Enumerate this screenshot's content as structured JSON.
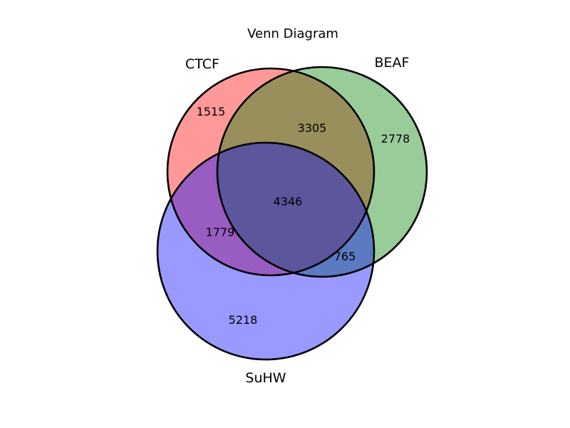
{
  "title": "Venn Diagram",
  "sets": {
    "a": {
      "label": "CTCF",
      "color": "#ff0000"
    },
    "b": {
      "label": "BEAF",
      "color": "#008000"
    },
    "c": {
      "label": "SuHW",
      "color": "#0000ff"
    }
  },
  "regions": {
    "a_only": "1515",
    "b_only": "2778",
    "ab": "3305",
    "abc": "4346",
    "ac": "1779",
    "bc": "765",
    "c_only": "5218"
  },
  "style": {
    "fill_opacity": 0.4,
    "outline_color": "#000000"
  }
}
